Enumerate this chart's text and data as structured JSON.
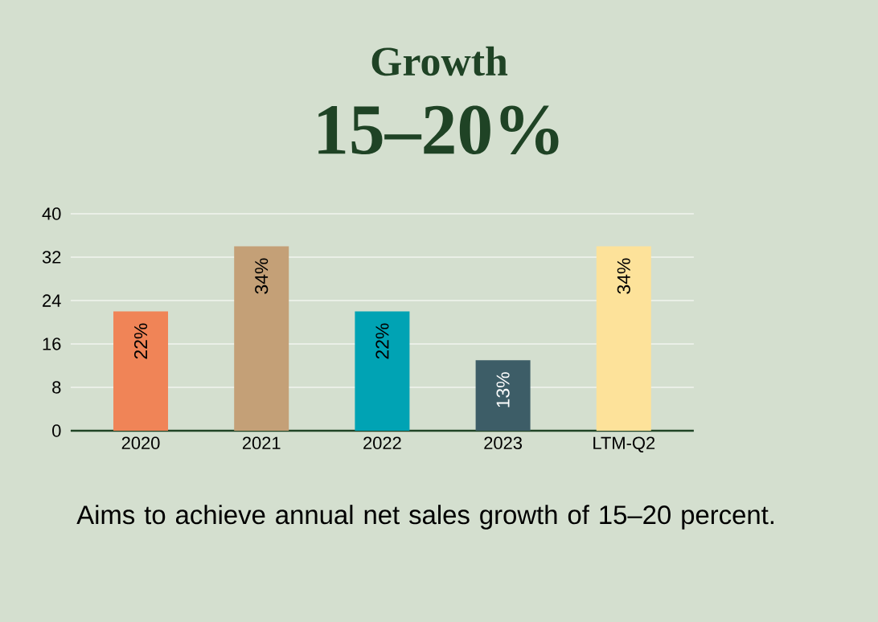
{
  "chart_data": {
    "type": "bar",
    "title": "Growth",
    "subtitle": "15–20%",
    "categories": [
      "2020",
      "2021",
      "2022",
      "2023",
      "LTM-Q2"
    ],
    "values": [
      22,
      34,
      22,
      13,
      34
    ],
    "colors": [
      "#f08457",
      "#c4a077",
      "#00a3b4",
      "#3d5d67",
      "#fde29a"
    ],
    "value_labels": [
      "22%",
      "34%",
      "22%",
      "13%",
      "34%"
    ],
    "ylim": [
      0,
      40
    ],
    "yticks": [
      0,
      8,
      16,
      24,
      32,
      40
    ],
    "grid": "y",
    "annotations": [
      "Aims to achieve annual net sales growth of 15–20 percent."
    ]
  }
}
